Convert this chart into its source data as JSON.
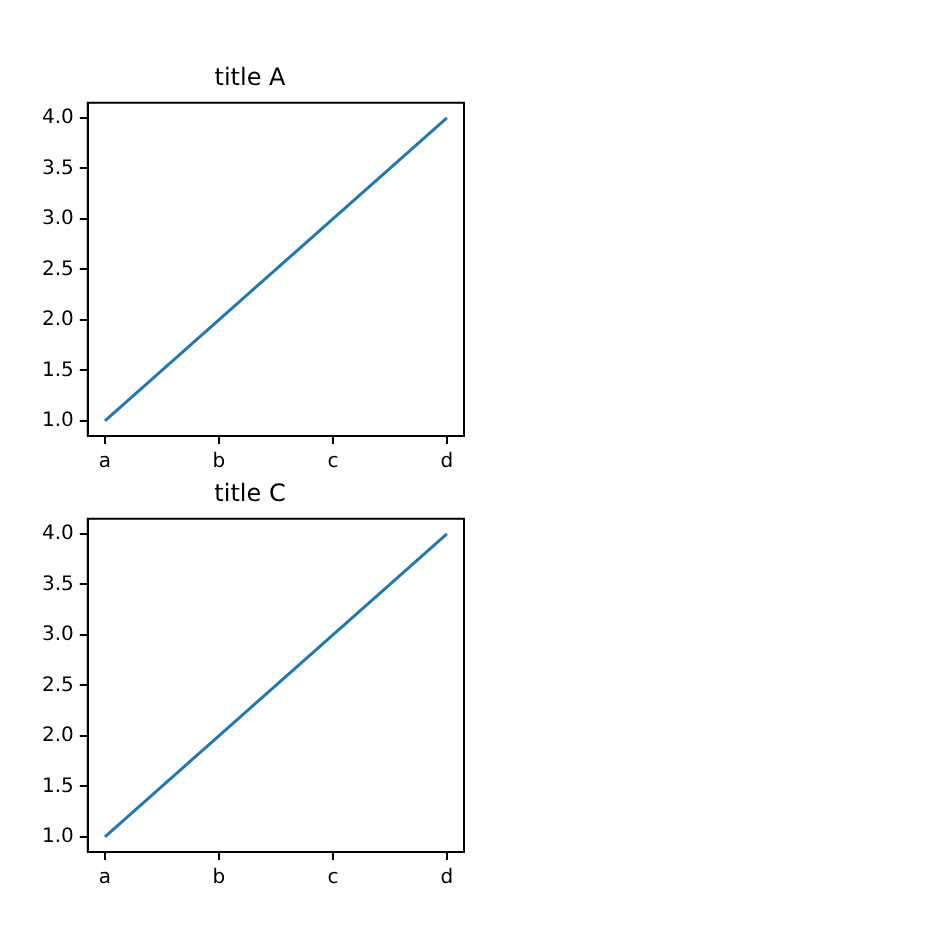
{
  "chart_data": [
    {
      "type": "line",
      "title": "title A",
      "categories": [
        "a",
        "b",
        "c",
        "d"
      ],
      "series": [
        {
          "color": "#1f77b4",
          "values": [
            1,
            2,
            3,
            4
          ]
        }
      ],
      "ylim": [
        0.85,
        4.15
      ],
      "yticks": [
        {
          "value": 1,
          "label": "1.0"
        },
        {
          "value": 1.5,
          "label": "1.5"
        },
        {
          "value": 2,
          "label": "2.0"
        },
        {
          "value": 2.5,
          "label": "2.5"
        },
        {
          "value": 3,
          "label": "3.0"
        },
        {
          "value": 3.5,
          "label": "3.5"
        },
        {
          "value": 4,
          "label": "4.0"
        }
      ],
      "grid": false,
      "legend": false,
      "marker": "none",
      "line_style": "solid"
    },
    {
      "type": "line",
      "title": "title C",
      "categories": [
        "a",
        "b",
        "c",
        "d"
      ],
      "series": [
        {
          "color": "#1f77b4",
          "values": [
            1,
            2,
            3,
            4
          ]
        }
      ],
      "ylim": [
        0.85,
        4.15
      ],
      "yticks": [
        {
          "value": 1,
          "label": "1.0"
        },
        {
          "value": 1.5,
          "label": "1.5"
        },
        {
          "value": 2,
          "label": "2.0"
        },
        {
          "value": 2.5,
          "label": "2.5"
        },
        {
          "value": 3,
          "label": "3.0"
        },
        {
          "value": 3.5,
          "label": "3.5"
        },
        {
          "value": 4,
          "label": "4.0"
        }
      ],
      "grid": false,
      "legend": false,
      "marker": "none",
      "line_style": "solid"
    }
  ]
}
